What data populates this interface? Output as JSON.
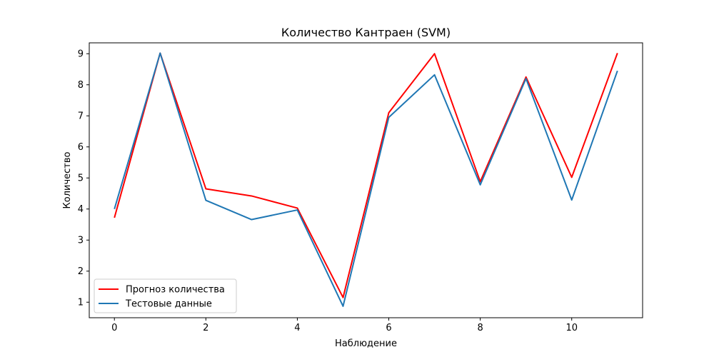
{
  "chart_data": {
    "type": "line",
    "title": "Количество Кантраен  (SVM)",
    "xlabel": "Наблюдение",
    "ylabel": "Количество",
    "xlim": [
      -0.55,
      11.55
    ],
    "ylim": [
      0.5,
      9.35
    ],
    "x_ticks": [
      0,
      2,
      4,
      6,
      8,
      10
    ],
    "y_ticks": [
      1,
      2,
      3,
      4,
      5,
      6,
      7,
      8,
      9
    ],
    "grid": false,
    "legend_position": "lower-left",
    "x": [
      0,
      1,
      2,
      3,
      4,
      5,
      6,
      7,
      8,
      9,
      10,
      11
    ],
    "series": [
      {
        "name": "Прогноз количества",
        "color": "#ff0000",
        "values": [
          3.72,
          9.02,
          4.65,
          4.42,
          4.03,
          1.15,
          7.1,
          9.0,
          4.88,
          8.25,
          5.02,
          9.02
        ]
      },
      {
        "name": "Тестовые данные",
        "color": "#1f77b4",
        "values": [
          4.0,
          9.02,
          4.28,
          3.66,
          3.97,
          0.87,
          6.95,
          8.32,
          4.78,
          8.2,
          4.29,
          8.45
        ]
      }
    ]
  }
}
